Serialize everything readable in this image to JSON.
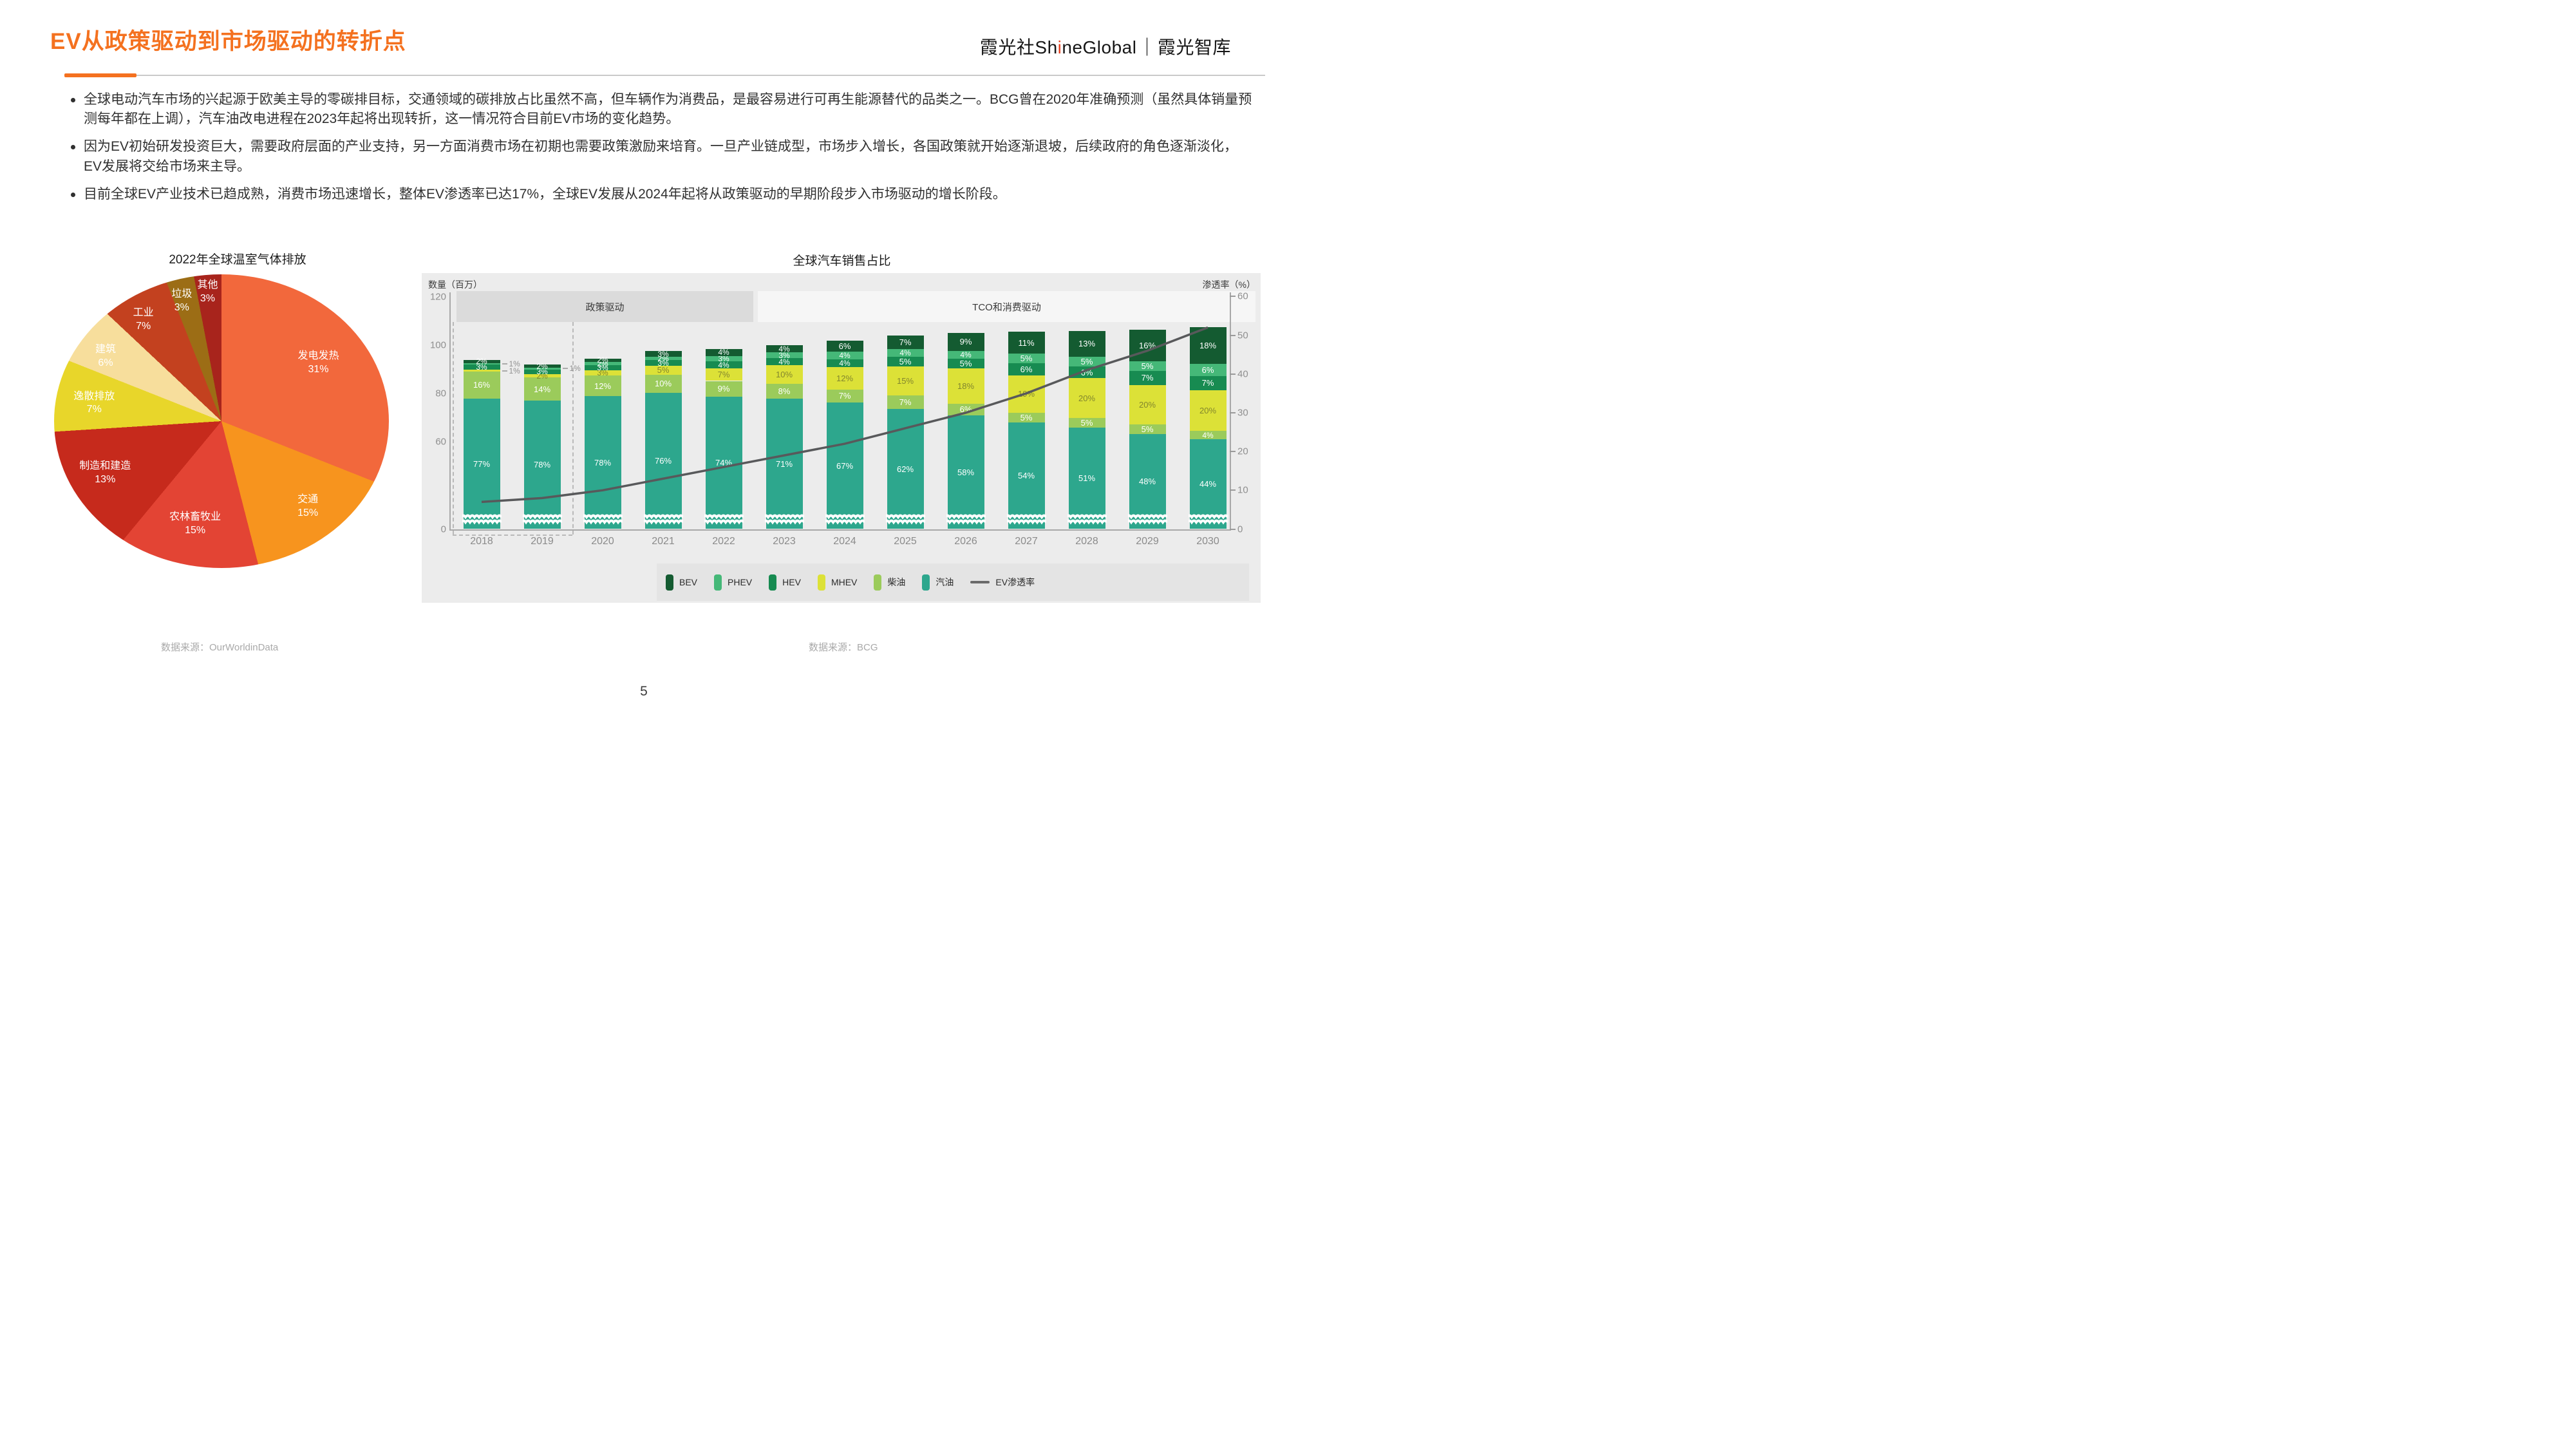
{
  "header": {
    "title": "EV从政策驱动到市场驱动的转折点",
    "logo": {
      "cjk_prefix": "霞光社",
      "latin_before_accent": "Sh",
      "accent_letter": "i",
      "latin_after_accent": "neGlobal",
      "separator": "｜",
      "suffix": "霞光智库"
    }
  },
  "bullets": [
    "全球电动汽车市场的兴起源于欧美主导的零碳排目标，交通领域的碳排放占比虽然不高，但车辆作为消费品，是最容易进行可再生能源替代的品类之一。BCG曾在2020年准确预测（虽然具体销量预测每年都在上调），汽车油改电进程在2023年起将出现转折，这一情况符合目前EV市场的变化趋势。",
    "因为EV初始研发投资巨大，需要政府层面的产业支持，另一方面消费市场在初期也需要政策激励来培育。一旦产业链成型，市场步入增长，各国政策就开始逐渐退坡，后续政府的角色逐渐淡化，EV发展将交给市场来主导。",
    "目前全球EV产业技术已趋成熟，消费市场迅速增长，整体EV渗透率已达17%，全球EV发展从2024年起将从政策驱动的早期阶段步入市场驱动的增长阶段。"
  ],
  "pie_section": {
    "title": "2022年全球温室气体排放",
    "source": "数据来源：OurWorldinData"
  },
  "bar_section": {
    "title": "全球汽车销售占比",
    "left_axis_label": "数量（百万）",
    "right_axis_label": "渗透率（%）",
    "bands": [
      "政策驱动",
      "TCO和消费驱动"
    ],
    "source": "数据来源：BCG"
  },
  "footer": {
    "page_number": "5"
  },
  "chart_data": [
    {
      "type": "pie",
      "title": "2022年全球温室气体排放",
      "unit": "%",
      "slices": [
        {
          "label": "发电发热",
          "value": 31,
          "color": "#f2683c"
        },
        {
          "label": "交通",
          "value": 15,
          "color": "#f7941e"
        },
        {
          "label": "农林畜牧业",
          "value": 15,
          "color": "#e34434"
        },
        {
          "label": "制造和建造",
          "value": 13,
          "color": "#c62a1c"
        },
        {
          "label": "逸散排放",
          "value": 7,
          "color": "#e8d62a"
        },
        {
          "label": "建筑",
          "value": 6,
          "color": "#f7de9c"
        },
        {
          "label": "工业",
          "value": 7,
          "color": "#c3411f"
        },
        {
          "label": "垃圾",
          "value": 3,
          "color": "#9c6d15"
        },
        {
          "label": "其他",
          "value": 3,
          "color": "#a8241c"
        }
      ]
    },
    {
      "type": "bar",
      "subtype": "stacked-columns-with-line",
      "title": "全球汽车销售占比",
      "categories": [
        "2018",
        "2019",
        "2020",
        "2021",
        "2022",
        "2023",
        "2024",
        "2025",
        "2026",
        "2027",
        "2028",
        "2029",
        "2030"
      ],
      "totals_millions": [
        94,
        92,
        94.5,
        97.5,
        98.5,
        100,
        102,
        104,
        105,
        105.5,
        106,
        106.5,
        107.5
      ],
      "series": [
        {
          "name": "汽油",
          "color": "#2da78d",
          "label_color": "#ffffff",
          "values": [
            77,
            78,
            78,
            76,
            74,
            71,
            67,
            62,
            58,
            54,
            51,
            48,
            44
          ]
        },
        {
          "name": "柴油",
          "color": "#9bcb5b",
          "label_color": "#ffffff",
          "values": [
            16,
            14,
            12,
            10,
            9,
            8,
            7,
            7,
            6,
            5,
            5,
            5,
            4
          ]
        },
        {
          "name": "MHEV",
          "color": "#dce137",
          "label_color": "#82862e",
          "values": [
            1,
            2,
            3,
            5,
            7,
            10,
            12,
            15,
            18,
            19,
            20,
            20,
            20
          ]
        },
        {
          "name": "HEV",
          "color": "#178b51",
          "label_color": "#ffffff",
          "values": [
            3,
            3,
            3,
            3,
            4,
            4,
            4,
            5,
            5,
            6,
            6,
            7,
            7
          ]
        },
        {
          "name": "PHEV",
          "color": "#45b878",
          "label_color": "#ffffff",
          "values": [
            1,
            1,
            2,
            2,
            3,
            3,
            4,
            4,
            4,
            5,
            5,
            5,
            6
          ]
        },
        {
          "name": "BEV",
          "color": "#145b31",
          "label_color": "#ffffff",
          "values": [
            2,
            2,
            2,
            3,
            4,
            4,
            6,
            7,
            9,
            11,
            13,
            16,
            18
          ]
        }
      ],
      "line_series": {
        "name": "EV渗透率",
        "color": "#58595b",
        "values": [
          7,
          8,
          10,
          13,
          16,
          19,
          22,
          26,
          30,
          35,
          41,
          46,
          52
        ]
      },
      "left_axis": {
        "label": "数量（百万）",
        "ticks": [
          120,
          100,
          80,
          60,
          0
        ],
        "max": 120,
        "broken_axis": true
      },
      "right_axis": {
        "label": "渗透率（%）",
        "ticks": [
          60,
          50,
          40,
          30,
          20,
          10,
          0
        ],
        "max": 60
      },
      "bands": [
        {
          "label": "政策驱动",
          "from": "2018",
          "to": "2022"
        },
        {
          "label": "TCO和消费驱动",
          "from": "2023",
          "to": "2030"
        }
      ],
      "legend": [
        "BEV",
        "PHEV",
        "HEV",
        "MHEV",
        "柴油",
        "汽油",
        "EV渗透率"
      ],
      "outside_labels": [
        {
          "year": "2018",
          "series": "PHEV",
          "text": "1%"
        },
        {
          "year": "2018",
          "series": "MHEV",
          "text": "1%"
        },
        {
          "year": "2019",
          "series": "PHEV",
          "text": "1%"
        }
      ]
    }
  ]
}
